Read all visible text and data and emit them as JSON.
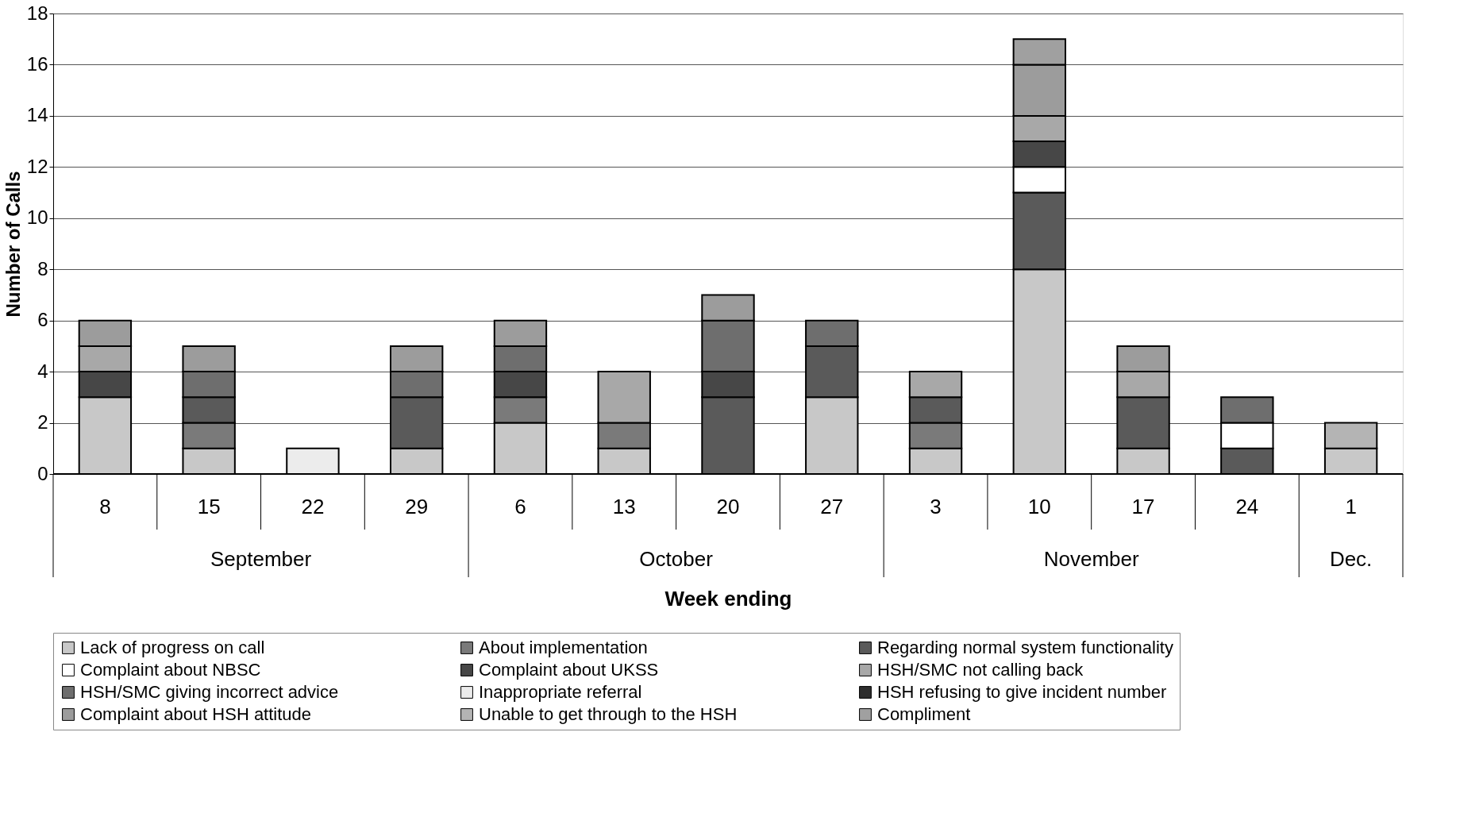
{
  "chart_data": {
    "type": "bar",
    "stacked": true,
    "xlabel": "Week ending",
    "ylabel": "Number of Calls",
    "categories": [
      "8",
      "15",
      "22",
      "29",
      "6",
      "13",
      "20",
      "27",
      "3",
      "10",
      "17",
      "24",
      "1"
    ],
    "annotations": [
      "September",
      "October",
      "November",
      "Dec."
    ],
    "ylim": [
      0,
      18
    ],
    "yticks": [
      0,
      2,
      4,
      6,
      8,
      10,
      12,
      14,
      16,
      18
    ],
    "grid": "y",
    "legend": "bottom",
    "series": [
      {
        "name": "Lack of progress on call",
        "color": "#c8c8c8",
        "values": [
          3,
          1,
          0,
          1,
          2,
          1,
          0,
          3,
          1,
          8,
          1,
          0,
          1
        ]
      },
      {
        "name": "About implementation",
        "color": "#7a7a7a",
        "values": [
          0,
          1,
          0,
          0,
          1,
          1,
          0,
          0,
          1,
          0,
          0,
          0,
          0
        ]
      },
      {
        "name": "Regarding normal system functionality",
        "color": "#5a5a5a",
        "values": [
          0,
          1,
          0,
          2,
          0,
          0,
          3,
          2,
          1,
          3,
          2,
          1,
          0
        ]
      },
      {
        "name": "Complaint about NBSC",
        "color": "#ffffff",
        "values": [
          0,
          0,
          0,
          0,
          0,
          0,
          0,
          0,
          0,
          1,
          0,
          1,
          0
        ]
      },
      {
        "name": "Complaint about UKSS",
        "color": "#474747",
        "values": [
          1,
          0,
          0,
          0,
          1,
          0,
          1,
          0,
          0,
          1,
          0,
          0,
          0
        ]
      },
      {
        "name": "HSH/SMC not calling back",
        "color": "#a8a8a8",
        "values": [
          1,
          0,
          0,
          0,
          0,
          2,
          0,
          0,
          1,
          1,
          1,
          0,
          0
        ]
      },
      {
        "name": "HSH/SMC giving incorrect advice",
        "color": "#6e6e6e",
        "values": [
          0,
          1,
          0,
          1,
          1,
          0,
          2,
          1,
          0,
          0,
          0,
          1,
          0
        ]
      },
      {
        "name": "Inappropriate referral",
        "color": "#ececec",
        "values": [
          0,
          0,
          1,
          0,
          0,
          0,
          0,
          0,
          0,
          0,
          0,
          0,
          0
        ]
      },
      {
        "name": "HSH refusing to give incident number",
        "color": "#2e2e2e",
        "values": [
          0,
          0,
          0,
          0,
          0,
          0,
          0,
          0,
          0,
          0,
          0,
          0,
          0
        ]
      },
      {
        "name": "Complaint about HSH attitude",
        "color": "#9c9c9c",
        "values": [
          1,
          1,
          0,
          1,
          1,
          0,
          1,
          0,
          0,
          2,
          1,
          0,
          0
        ]
      },
      {
        "name": "Unable to get through to the HSH",
        "color": "#b4b4b4",
        "values": [
          0,
          0,
          0,
          0,
          0,
          0,
          0,
          0,
          0,
          0,
          0,
          0,
          1
        ]
      },
      {
        "name": "Compliment",
        "color": "#a0a0a0",
        "values": [
          0,
          0,
          0,
          0,
          0,
          0,
          0,
          0,
          0,
          1,
          0,
          0,
          0
        ]
      }
    ]
  }
}
